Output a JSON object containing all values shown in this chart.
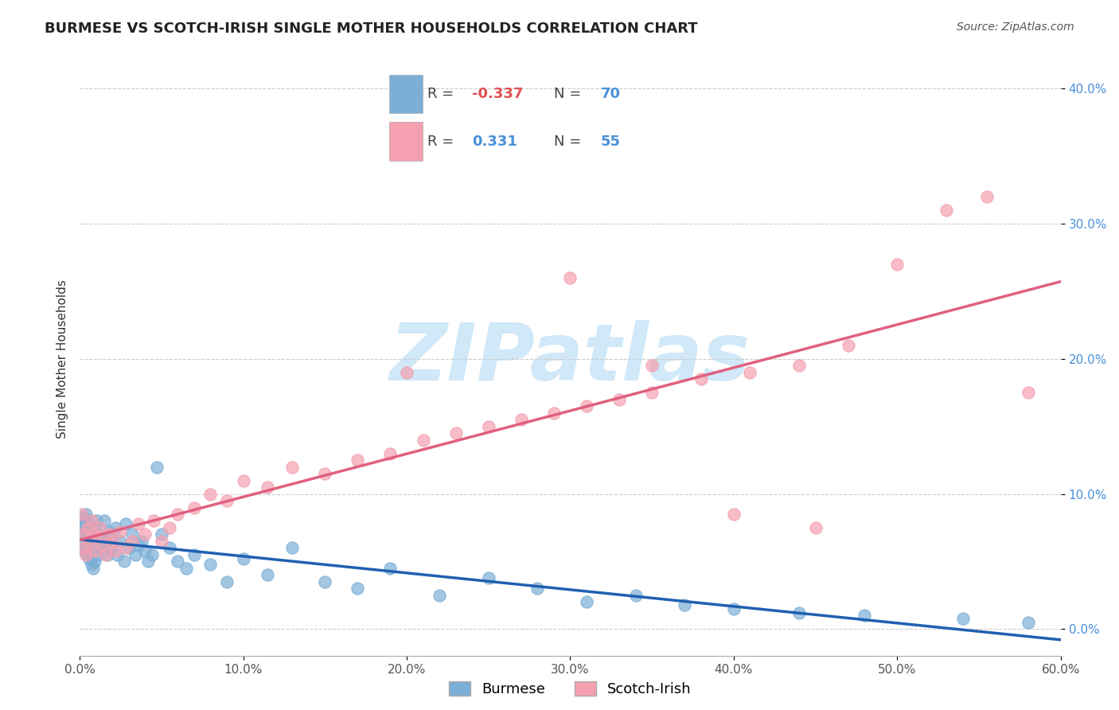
{
  "title": "BURMESE VS SCOTCH-IRISH SINGLE MOTHER HOUSEHOLDS CORRELATION CHART",
  "source": "Source: ZipAtlas.com",
  "xlabel": "",
  "ylabel": "Single Mother Households",
  "xlim": [
    0.0,
    0.6
  ],
  "ylim": [
    -0.02,
    0.42
  ],
  "xticks": [
    0.0,
    0.1,
    0.2,
    0.3,
    0.4,
    0.5,
    0.6
  ],
  "xtick_labels": [
    "0.0%",
    "10.0%",
    "20.0%",
    "30.0%",
    "40.0%",
    "50.0%",
    "60.0%"
  ],
  "yticks": [
    0.0,
    0.1,
    0.2,
    0.3,
    0.4
  ],
  "ytick_labels": [
    "0.0%",
    "10.0%",
    "20.0%",
    "30.0%",
    "40.0%"
  ],
  "burmese_color": "#7cafd6",
  "scotchirish_color": "#f4a0b0",
  "burmese_line_color": "#2060b0",
  "scotchirish_line_color": "#e06080",
  "burmese_R": -0.337,
  "burmese_N": 70,
  "scotchirish_R": 0.331,
  "scotchirish_N": 55,
  "burmese_x": [
    0.001,
    0.002,
    0.002,
    0.003,
    0.003,
    0.003,
    0.004,
    0.004,
    0.004,
    0.005,
    0.005,
    0.005,
    0.006,
    0.006,
    0.007,
    0.007,
    0.008,
    0.008,
    0.009,
    0.009,
    0.01,
    0.01,
    0.011,
    0.012,
    0.013,
    0.014,
    0.015,
    0.016,
    0.017,
    0.018,
    0.019,
    0.02,
    0.022,
    0.023,
    0.025,
    0.027,
    0.028,
    0.03,
    0.032,
    0.034,
    0.036,
    0.038,
    0.04,
    0.042,
    0.044,
    0.047,
    0.05,
    0.055,
    0.06,
    0.065,
    0.07,
    0.08,
    0.09,
    0.1,
    0.115,
    0.13,
    0.15,
    0.17,
    0.19,
    0.22,
    0.25,
    0.28,
    0.31,
    0.34,
    0.37,
    0.4,
    0.44,
    0.48,
    0.54,
    0.58
  ],
  "burmese_y": [
    0.075,
    0.065,
    0.08,
    0.058,
    0.07,
    0.082,
    0.06,
    0.075,
    0.085,
    0.055,
    0.068,
    0.078,
    0.052,
    0.065,
    0.048,
    0.072,
    0.045,
    0.068,
    0.05,
    0.075,
    0.06,
    0.08,
    0.055,
    0.07,
    0.062,
    0.058,
    0.08,
    0.065,
    0.055,
    0.072,
    0.06,
    0.068,
    0.075,
    0.055,
    0.065,
    0.05,
    0.078,
    0.06,
    0.07,
    0.055,
    0.062,
    0.065,
    0.058,
    0.05,
    0.055,
    0.12,
    0.07,
    0.06,
    0.05,
    0.045,
    0.055,
    0.048,
    0.035,
    0.052,
    0.04,
    0.06,
    0.035,
    0.03,
    0.045,
    0.025,
    0.038,
    0.03,
    0.02,
    0.025,
    0.018,
    0.015,
    0.012,
    0.01,
    0.008,
    0.005
  ],
  "scotchirish_x": [
    0.001,
    0.002,
    0.003,
    0.004,
    0.005,
    0.006,
    0.007,
    0.008,
    0.009,
    0.01,
    0.012,
    0.014,
    0.016,
    0.018,
    0.02,
    0.022,
    0.025,
    0.028,
    0.032,
    0.036,
    0.04,
    0.045,
    0.05,
    0.055,
    0.06,
    0.07,
    0.08,
    0.09,
    0.1,
    0.115,
    0.13,
    0.15,
    0.17,
    0.19,
    0.21,
    0.23,
    0.25,
    0.27,
    0.29,
    0.31,
    0.33,
    0.35,
    0.38,
    0.41,
    0.44,
    0.47,
    0.5,
    0.53,
    0.555,
    0.58,
    0.2,
    0.3,
    0.35,
    0.4,
    0.45
  ],
  "scotchirish_y": [
    0.085,
    0.07,
    0.06,
    0.055,
    0.075,
    0.065,
    0.08,
    0.07,
    0.058,
    0.068,
    0.075,
    0.062,
    0.055,
    0.07,
    0.065,
    0.058,
    0.072,
    0.06,
    0.065,
    0.078,
    0.07,
    0.08,
    0.065,
    0.075,
    0.085,
    0.09,
    0.1,
    0.095,
    0.11,
    0.105,
    0.12,
    0.115,
    0.125,
    0.13,
    0.14,
    0.145,
    0.15,
    0.155,
    0.16,
    0.165,
    0.17,
    0.175,
    0.185,
    0.19,
    0.195,
    0.21,
    0.27,
    0.31,
    0.32,
    0.175,
    0.19,
    0.26,
    0.195,
    0.085,
    0.075
  ],
  "watermark": "ZIPatlas",
  "watermark_color": "#d0e8f8",
  "grid_color": "#cccccc",
  "background_color": "#ffffff",
  "title_fontsize": 13,
  "axis_fontsize": 11,
  "tick_fontsize": 11,
  "legend_fontsize": 13
}
